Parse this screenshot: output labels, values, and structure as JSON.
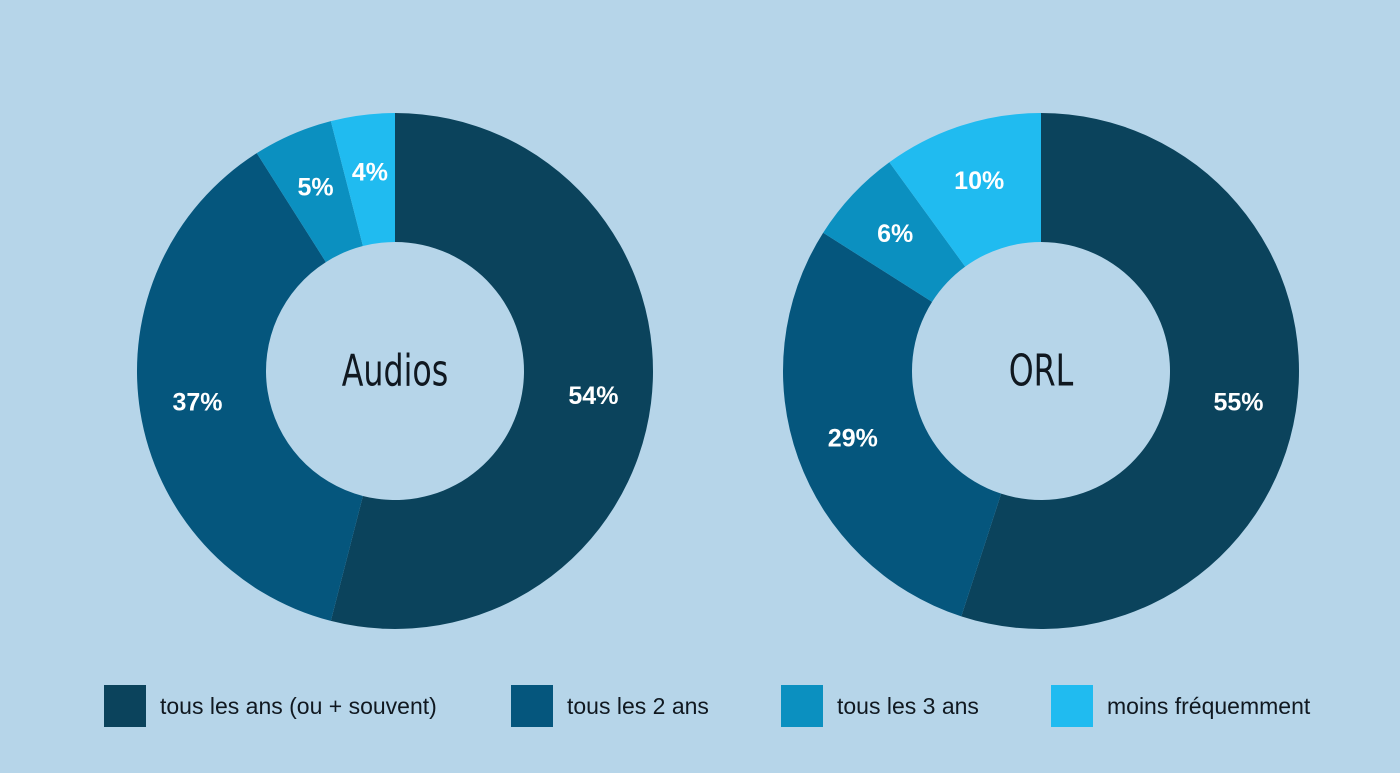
{
  "chart_data": [
    {
      "type": "pie",
      "title": "Audios",
      "categories": [
        "tous les ans (ou + souvent)",
        "tous les 2 ans",
        "tous les 3 ans",
        "moins fréquemment"
      ],
      "values": [
        54,
        37,
        5,
        4
      ],
      "labels": [
        "54%",
        "37%",
        "5%",
        "4%"
      ]
    },
    {
      "type": "pie",
      "title": "ORL",
      "categories": [
        "tous les ans (ou + souvent)",
        "tous les 2 ans",
        "tous les 3 ans",
        "moins fréquemment"
      ],
      "values": [
        55,
        29,
        6,
        10
      ],
      "labels": [
        "55%",
        "29%",
        "6%",
        "10%"
      ]
    }
  ],
  "legend": [
    {
      "label": "tous les ans (ou + souvent)",
      "color": "#0b435c"
    },
    {
      "label": "tous les 2 ans",
      "color": "#05567d"
    },
    {
      "label": "tous les 3 ans",
      "color": "#0b90c0"
    },
    {
      "label": "moins fréquemment",
      "color": "#20bbf0"
    }
  ],
  "colors": {
    "background": "#b6d5e9",
    "slices": [
      "#0b435c",
      "#05567d",
      "#0b90c0",
      "#20bbf0"
    ],
    "center_text": "#101820",
    "slice_label": "#ffffff"
  }
}
